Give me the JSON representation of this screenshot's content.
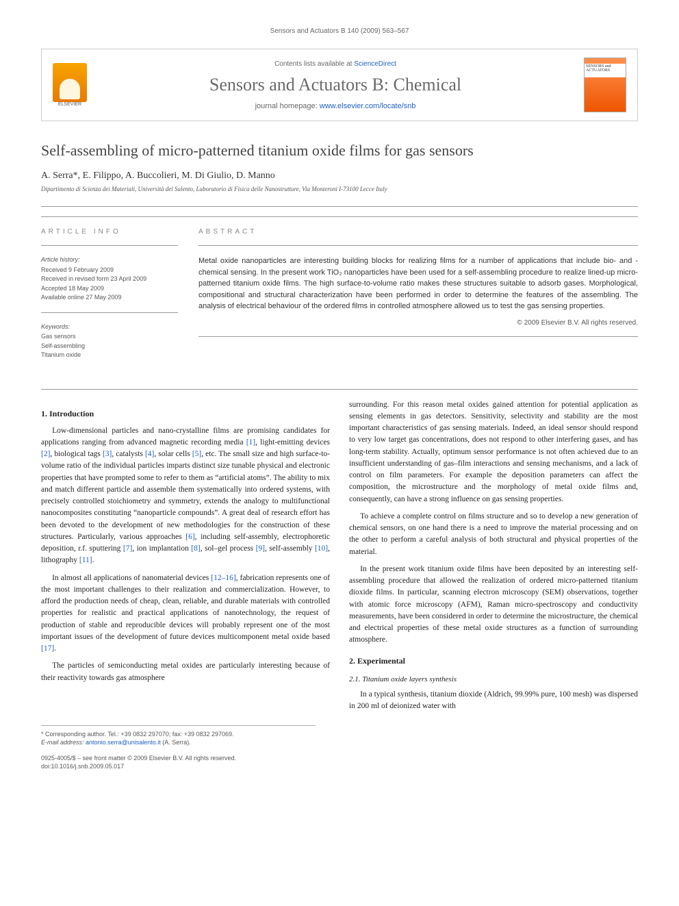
{
  "running_header": "Sensors and Actuators B 140 (2009) 563–567",
  "masthead": {
    "contents_pre": "Contents lists available at ",
    "contents_link": "ScienceDirect",
    "journal_title": "Sensors and Actuators B: Chemical",
    "homepage_pre": "journal homepage: ",
    "homepage_url": "www.elsevier.com/locate/snb",
    "elsevier_label": "ELSEVIER",
    "cover_label": "SENSORS and ACTUATORS"
  },
  "article": {
    "title": "Self-assembling of micro-patterned titanium oxide films for gas sensors",
    "authors": "A. Serra*, E. Filippo, A. Buccolieri, M. Di Giulio, D. Manno",
    "affiliation": "Dipartimento di Scienza dei Materiali, Università del Salento, Laboratorio di Fisica delle Nanostrutture, Via Monteroni I-73100 Lecce Italy"
  },
  "info": {
    "label_info": "ARTICLE INFO",
    "label_abstract": "ABSTRACT",
    "history_hd": "Article history:",
    "history_1": "Received 9 February 2009",
    "history_2": "Received in revised form 23 April 2009",
    "history_3": "Accepted 18 May 2009",
    "history_4": "Available online 27 May 2009",
    "keywords_hd": "Keywords:",
    "kw1": "Gas sensors",
    "kw2": "Self-assembling",
    "kw3": "Titanium oxide"
  },
  "abstract": {
    "text": "Metal oxide nanoparticles are interesting building blocks for realizing films for a number of applications that include bio- and -chemical sensing. In the present work TiO₂ nanoparticles have been used for a self-assembling procedure to realize lined-up micro-patterned titanium oxide films. The high surface-to-volume ratio makes these structures suitable to adsorb gases. Morphological, compositional and structural characterization have been performed in order to determine the features of the assembling. The analysis of electrical behaviour of the ordered films in controlled atmosphere allowed us to test the gas sensing properties.",
    "copyright": "© 2009 Elsevier B.V. All rights reserved."
  },
  "body": {
    "h_intro": "1. Introduction",
    "p1a": "Low-dimensional particles and nano-crystalline films are promising candidates for applications ranging from advanced magnetic recording media ",
    "r1": "[1]",
    "p1b": ", light-emitting devices ",
    "r2": "[2]",
    "p1c": ", biological tags ",
    "r3": "[3]",
    "p1d": ", catalysts ",
    "r4": "[4]",
    "p1e": ", solar cells ",
    "r5": "[5]",
    "p1f": ", etc. The small size and high surface-to-volume ratio of the individual particles imparts distinct size tunable physical and electronic properties that have prompted some to refer to them as “artificial atoms”. The ability to mix and match different particle and assemble them systematically into ordered systems, with precisely controlled stoichiometry and symmetry, extends the analogy to multifunctional nanocomposites constituting “nanoparticle compounds”. A great deal of research effort has been devoted to the development of new methodologies for the construction of these structures. Particularly, various approaches ",
    "r6": "[6]",
    "p1g": ", including self-assembly, electrophoretic deposition, r.f. sputtering ",
    "r7": "[7]",
    "p1h": ", ion implantation ",
    "r8": "[8]",
    "p1i": ", sol–gel process ",
    "r9": "[9]",
    "p1j": ", self-assembly ",
    "r10": "[10]",
    "p1k": ", lithography ",
    "r11": "[11]",
    "p1l": ".",
    "p2a": "In almost all applications of nanomaterial devices ",
    "r12_16": "[12–16]",
    "p2b": ", fabrication represents one of the most important challenges to their realization and commercialization. However, to afford the production needs of cheap, clean, reliable, and durable materials with controlled properties for realistic and practical applications of nanotechnology, the request of production of stable and reproducible devices will probably represent one of the most important issues of the development of future devices multicomponent metal oxide based ",
    "r17": "[17]",
    "p2c": ".",
    "p3": "The particles of semiconducting metal oxides are particularly interesting because of their reactivity towards gas atmosphere",
    "p4": "surrounding. For this reason metal oxides gained attention for potential application as sensing elements in gas detectors. Sensitivity, selectivity and stability are the most important characteristics of gas sensing materials. Indeed, an ideal sensor should respond to very low target gas concentrations, does not respond to other interfering gases, and has long-term stability. Actually, optimum sensor performance is not often achieved due to an insufficient understanding of gas–film interactions and sensing mechanisms, and a lack of control on film parameters. For example the deposition parameters can affect the composition, the microstructure and the morphology of metal oxide films and, consequently, can have a strong influence on gas sensing properties.",
    "p5": "To achieve a complete control on films structure and so to develop a new generation of chemical sensors, on one hand there is a need to improve the material processing and on the other to perform a careful analysis of both structural and physical properties of the material.",
    "p6": "In the present work titanium oxide films have been deposited by an interesting self-assembling procedure that allowed the realization of ordered micro-patterned titanium dioxide films. In particular, scanning electron microscopy (SEM) observations, together with atomic force microscopy (AFM), Raman micro-spectroscopy and conductivity measurements, have been considered in order to determine the microstructure, the chemical and electrical properties of these metal oxide structures as a function of surrounding atmosphere.",
    "h_exp": "2. Experimental",
    "h_21": "2.1. Titanium oxide layers synthesis",
    "p7": "In a typical synthesis, titanium dioxide (Aldrich, 99.99% pure, 100 mesh) was dispersed in 200 ml of deionized water with"
  },
  "footnotes": {
    "corr": "* Corresponding author. Tel.: +39 0832 297070; fax: +39 0832 297069.",
    "email_pre": "E-mail address: ",
    "email": "antonio.serra@unisalento.it",
    "email_post": " (A. Serra)."
  },
  "footer": {
    "l1": "0925-4005/$ – see front matter © 2009 Elsevier B.V. All rights reserved.",
    "l2": "doi:10.1016/j.snb.2009.05.017"
  },
  "colors": {
    "link": "#2060c0",
    "text": "#333333",
    "muted": "#666666",
    "orange": "#ee6600"
  }
}
